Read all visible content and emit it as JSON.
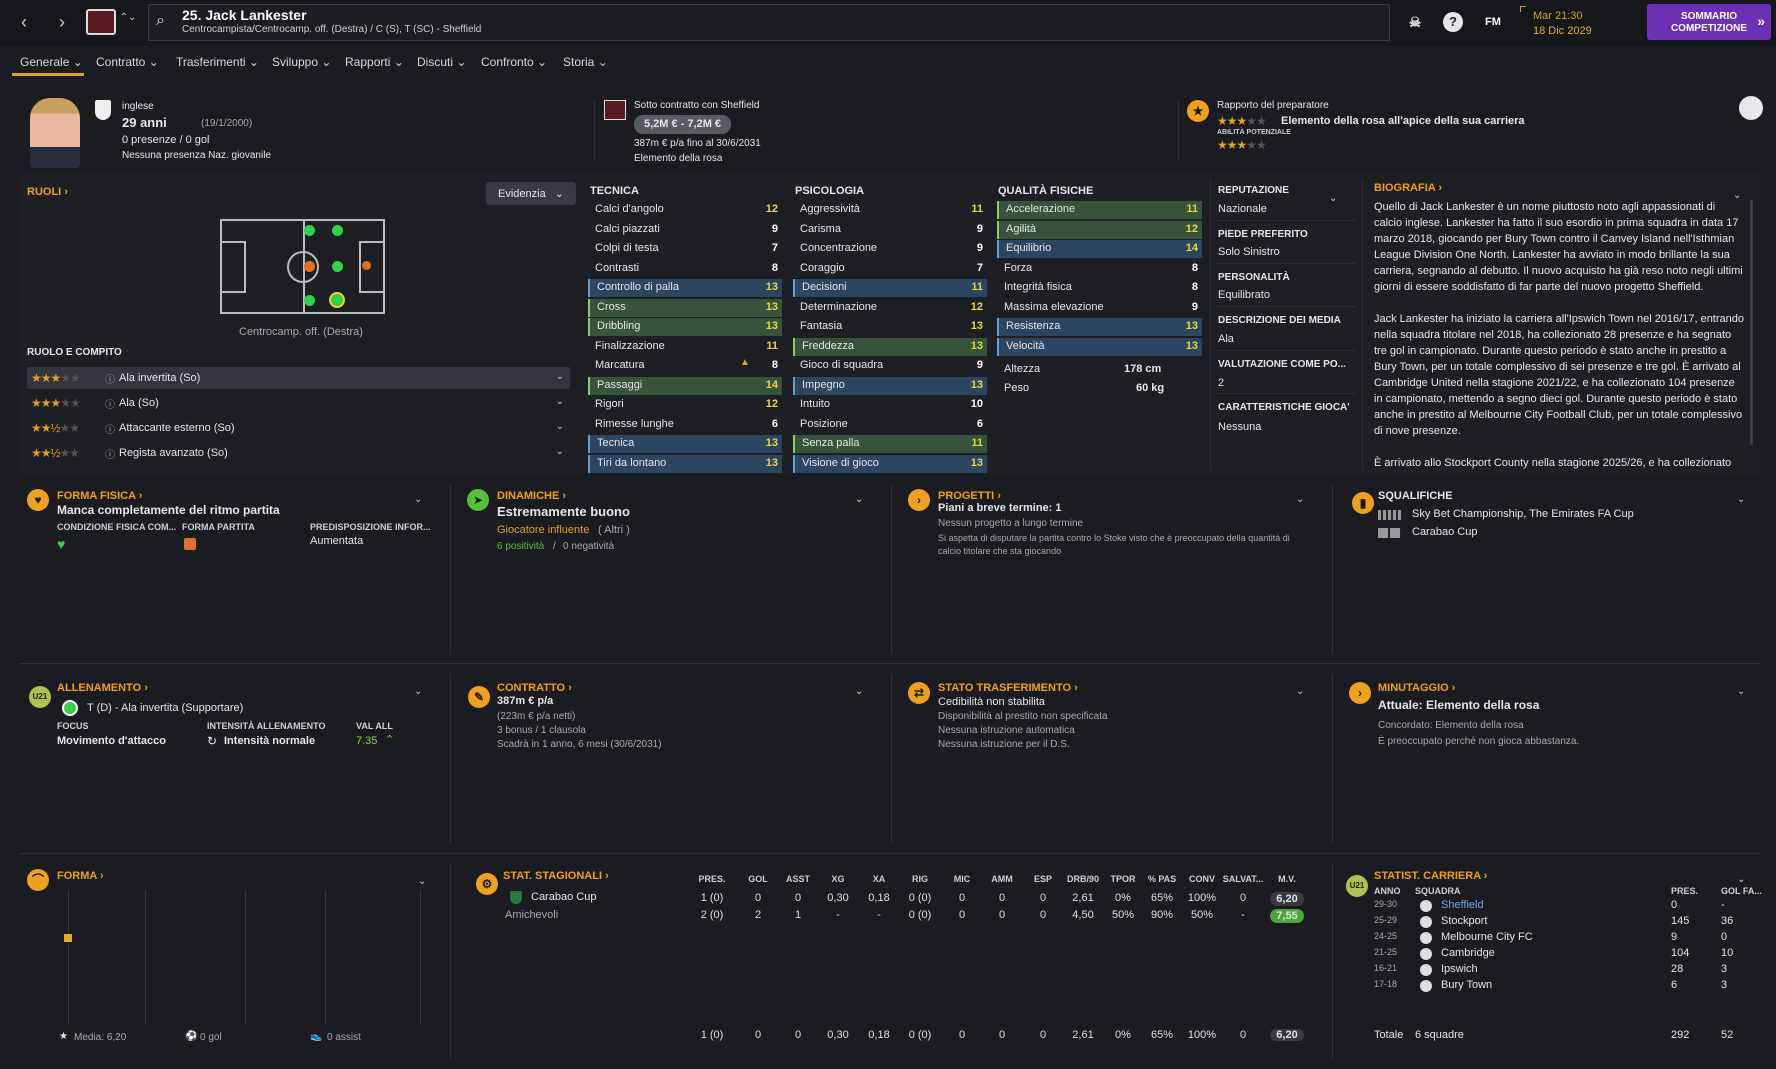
{
  "header": {
    "title": "25. Jack Lankester",
    "subtitle": "Centrocampista/Centrocamp. off. (Destra) / C (S), T (SC) - Sheffield",
    "date_line1": "Mar 21:30",
    "date_line2": "18 Dic 2029",
    "continue_btn": "SOMMARIO COMPETIZIONE",
    "fm_label": "FM",
    "help_icon": "?"
  },
  "tabs": [
    "Generale",
    "Contratto",
    "Trasferimenti",
    "Sviluppo",
    "Rapporti",
    "Discuti",
    "Confronto",
    "Storia"
  ],
  "profile": {
    "nationality": "inglese",
    "age": "29 anni",
    "dob": "(19/1/2000)",
    "apps": "0 presenze / 0 gol",
    "youth": "Nessuna presenza Naz. giovanile",
    "contract_label": "Sotto contratto con Sheffield",
    "value": "5,2M € - 7,2M €",
    "wage": "387m € p/a fino al 30/6/2031",
    "squad_status": "Elemento della rosa",
    "coach_label": "Rapporto del preparatore",
    "coach_summary": "Elemento della rosa all'apice della sua carriera",
    "potential_label": "ABILITÀ POTENZIALE"
  },
  "roles": {
    "title": "RUOLI",
    "highlight": "Evidenzia",
    "position_caption": "Centrocamp. off. (Destra)",
    "role_title": "RUOLO E COMPITO",
    "list": [
      {
        "name": "Ala invertita (So)",
        "stars": "★★★",
        "off": "★★"
      },
      {
        "name": "Ala (So)",
        "stars": "★★★",
        "off": "★★"
      },
      {
        "name": "Attaccante esterno (So)",
        "stars": "★★½",
        "off": "★★"
      },
      {
        "name": "Regista avanzato (So)",
        "stars": "★★½",
        "off": "★★"
      }
    ]
  },
  "tecnica": {
    "title": "TECNICA",
    "rows": [
      [
        "Calci d'angolo",
        "12"
      ],
      [
        "Calci piazzati",
        "9"
      ],
      [
        "Colpi di testa",
        "7"
      ],
      [
        "Contrasti",
        "8"
      ],
      [
        "Controllo di palla",
        "13"
      ],
      [
        "Cross",
        "13"
      ],
      [
        "Dribbling",
        "13"
      ],
      [
        "Finalizzazione",
        "11"
      ],
      [
        "Marcatura",
        "8"
      ],
      [
        "Passaggi",
        "14"
      ],
      [
        "Rigori",
        "12"
      ],
      [
        "Rimesse lunghe",
        "6"
      ],
      [
        "Tecnica",
        "13"
      ],
      [
        "Tiri da lontano",
        "13"
      ]
    ]
  },
  "psicologia": {
    "title": "PSICOLOGIA",
    "rows": [
      [
        "Aggressività",
        "11"
      ],
      [
        "Carisma",
        "9"
      ],
      [
        "Concentrazione",
        "9"
      ],
      [
        "Coraggio",
        "7"
      ],
      [
        "Decisioni",
        "11"
      ],
      [
        "Determinazione",
        "12"
      ],
      [
        "Fantasia",
        "13"
      ],
      [
        "Freddezza",
        "13"
      ],
      [
        "Gioco di squadra",
        "9"
      ],
      [
        "Impegno",
        "13"
      ],
      [
        "Intuito",
        "10"
      ],
      [
        "Posizione",
        "6"
      ],
      [
        "Senza palla",
        "11"
      ],
      [
        "Visione di gioco",
        "13"
      ]
    ]
  },
  "fisiche": {
    "title": "QUALITÀ FISICHE",
    "rows": [
      [
        "Accelerazione",
        "11"
      ],
      [
        "Agilità",
        "12"
      ],
      [
        "Equilibrio",
        "14"
      ],
      [
        "Forza",
        "8"
      ],
      [
        "Integrità fisica",
        "8"
      ],
      [
        "Massima elevazione",
        "9"
      ],
      [
        "Resistenza",
        "13"
      ],
      [
        "Velocità",
        "13"
      ]
    ],
    "height_label": "Altezza",
    "height": "178 cm",
    "weight_label": "Peso",
    "weight": "60 kg"
  },
  "info": {
    "rep_label": "REPUTAZIONE",
    "rep": "Nazionale",
    "foot_label": "PIEDE PREFERITO",
    "foot": "Solo Sinistro",
    "pers_label": "PERSONALITÀ",
    "pers": "Equilibrato",
    "media_label": "DESCRIZIONE DEI MEDIA",
    "media": "Ala",
    "val_label": "VALUTAZIONE COME PO...",
    "val": "2",
    "car_label": "CARATTERISTICHE GIOCA'",
    "car": "Nessuna"
  },
  "bio": {
    "title": "BIOGRAFIA",
    "p1": "Quello di Jack Lankester è un nome piuttosto noto agli appassionati di calcio inglese. Lankester ha fatto il suo esordio in prima squadra in data 17 marzo 2018, giocando per Bury Town contro il Canvey Island nell'Isthmian League Division One North. Lankester ha avviato in modo brillante la sua carriera, segnando al debutto. Il nuovo acquisto ha già reso noto negli ultimi giorni di essere soddisfatto di far parte del nuovo progetto Sheffield.",
    "p2": "Jack Lankester ha iniziato la carriera all'Ipswich Town nel 2016/17, entrando nella squadra titolare nel 2018, ha collezionato 28 presenze e ha segnato tre gol in campionato. Durante questo periodo è stato anche in prestito a Bury Town, per un totale complessivo di sei presenze e tre gol. È arrivato al Cambridge United nella stagione 2021/22, e ha collezionato 104 presenze in campionato, mettendo a segno dieci gol. Durante questo periodo è stato anche in prestito al Melbourne City Football Club, per un totale complessivo di nove presenze.",
    "p3": "È arrivato allo Stockport County nella stagione 2025/26, e ha collezionato"
  },
  "cards": {
    "forma_fisica": {
      "title": "FORMA FISICA",
      "line": "Manca completamente del ritmo partita",
      "c1": "CONDIZIONE FISICA COM...",
      "c2": "FORMA PARTITA",
      "c3": "PREDISPOSIZIONE INFOR...",
      "c3v": "Aumentata"
    },
    "dinamiche": {
      "title": "DINAMICHE",
      "line": "Estremamente buono",
      "sub": "Giocatore influente",
      "sub2": "( Altri )",
      "pos": "6 positività",
      "neg": "0 negatività"
    },
    "progetti": {
      "title": "PROGETTI",
      "line": "Piani a breve termine: 1",
      "l2": "Nessun progetto a lungo termine",
      "l3": "Si aspetta di disputare la partita contro lo Stoke visto che è preoccupato della quantità di calcio titolare che sta giocando"
    },
    "squalifiche": {
      "title": "SQUALIFICHE",
      "l1": "Sky Bet Championship, The Emirates FA Cup",
      "l2": "Carabao Cup"
    },
    "allenamento": {
      "title": "ALLENAMENTO",
      "line": "T (D) - Ala invertita (Supportare)",
      "f_label": "FOCUS",
      "f": "Movimento d'attacco",
      "i_label": "INTENSITÀ ALLENAMENTO",
      "i": "Intensità normale",
      "v_label": "VAL ALL",
      "v": "7.35",
      "badge": "U21"
    },
    "contratto": {
      "title": "CONTRATTO",
      "line": "387m € p/a",
      "l2": "(223m € p/a netti)",
      "l3": "3 bonus / 1 clausola",
      "l4": "Scadrà in 1 anno, 6 mesi (30/6/2031)"
    },
    "trasferimento": {
      "title": "STATO TRASFERIMENTO",
      "line": "Cedibilità non stabilita",
      "l2": "Disponibilità al prestito non specificata",
      "l3": "Nessuna istruzione automatica",
      "l4": "Nessuna istruzione per il D.S."
    },
    "minutaggio": {
      "title": "MINUTAGGIO",
      "line": "Attuale: Elemento della rosa",
      "l2": "Concordato: Elemento della rosa",
      "l3": "È preoccupato perché non gioca abbastanza."
    },
    "forma": {
      "title": "FORMA",
      "avg": "Media: 6,20",
      "goals": "0 gol",
      "assists": "0 assist"
    }
  },
  "season_stats": {
    "title": "STAT. STAGIONALI",
    "headers": [
      "PRES.",
      "GOL",
      "ASST",
      "XG",
      "XA",
      "RIG",
      "MIC",
      "AMM",
      "ESP",
      "DRB/90",
      "TPOR",
      "% PAS",
      "CONV",
      "SALVAT...",
      "M.V."
    ],
    "rows": [
      {
        "comp": "Carabao Cup",
        "vals": [
          "1 (0)",
          "0",
          "0",
          "0,30",
          "0,18",
          "0 (0)",
          "0",
          "0",
          "0",
          "2,61",
          "0%",
          "65%",
          "100%",
          "0",
          "6,20"
        ]
      },
      {
        "comp": "Amichevoli",
        "vals": [
          "2 (0)",
          "2",
          "1",
          "-",
          "-",
          "0 (0)",
          "0",
          "0",
          "0",
          "4,50",
          "50%",
          "90%",
          "50%",
          "-",
          "7,55"
        ]
      }
    ],
    "total": [
      "1 (0)",
      "0",
      "0",
      "0,30",
      "0,18",
      "0 (0)",
      "0",
      "0",
      "0",
      "2,61",
      "0%",
      "65%",
      "100%",
      "0",
      "6,20"
    ]
  },
  "career": {
    "title": "STATIST. CARRIERA",
    "h_year": "ANNO",
    "h_team": "SQUADRA",
    "h_apps": "PRES.",
    "h_goals": "GOL FA...",
    "badge": "U21",
    "rows": [
      [
        "29-30",
        "Sheffield",
        "0",
        "-"
      ],
      [
        "25-29",
        "Stockport",
        "145",
        "36"
      ],
      [
        "24-25",
        "Melbourne City FC",
        "9",
        "0"
      ],
      [
        "21-25",
        "Cambridge",
        "104",
        "10"
      ],
      [
        "16-21",
        "Ipswich",
        "28",
        "3"
      ],
      [
        "17-18",
        "Bury Town",
        "6",
        "3"
      ]
    ],
    "total_label": "Totale",
    "total_teams": "6 squadre",
    "total_apps": "292",
    "total_goals": "52"
  }
}
